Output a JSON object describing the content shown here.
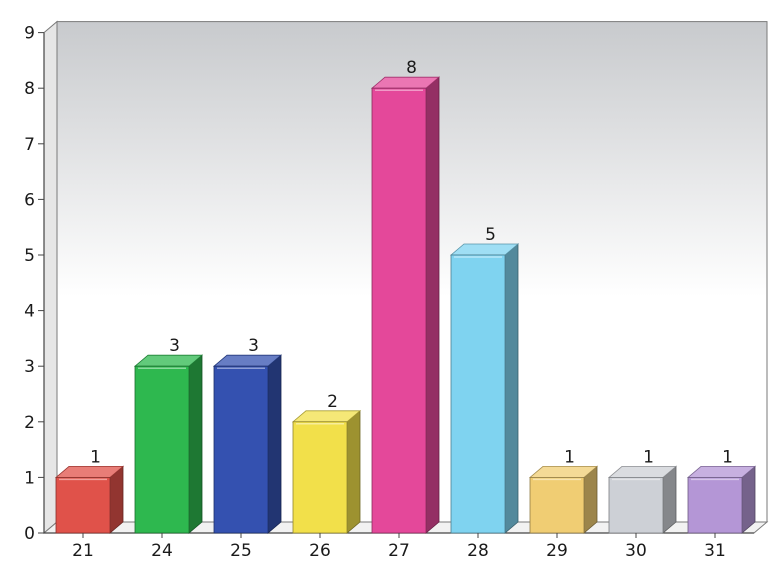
{
  "chart_data": {
    "type": "bar",
    "title": "",
    "xlabel": "",
    "ylabel": "",
    "categories": [
      "21",
      "24",
      "25",
      "26",
      "27",
      "28",
      "29",
      "30",
      "31"
    ],
    "values": [
      1,
      3,
      3,
      2,
      8,
      5,
      1,
      1,
      1
    ],
    "ylim": [
      0,
      9
    ],
    "yticks": [
      "0",
      "1",
      "2",
      "3",
      "4",
      "5",
      "6",
      "7",
      "8",
      "9"
    ],
    "data_labels": [
      "1",
      "3",
      "3",
      "2",
      "8",
      "5",
      "1",
      "1",
      "1"
    ],
    "style": "3d-bar",
    "grid": false,
    "legend": "none",
    "colors": [
      "#e0524a",
      "#2eb84f",
      "#3451b0",
      "#f2e04a",
      "#e4489a",
      "#7fd3f0",
      "#f0cd73",
      "#cdd0d6",
      "#b496d6"
    ],
    "background_gradient": [
      "#c8cacd",
      "#ffffff"
    ]
  }
}
